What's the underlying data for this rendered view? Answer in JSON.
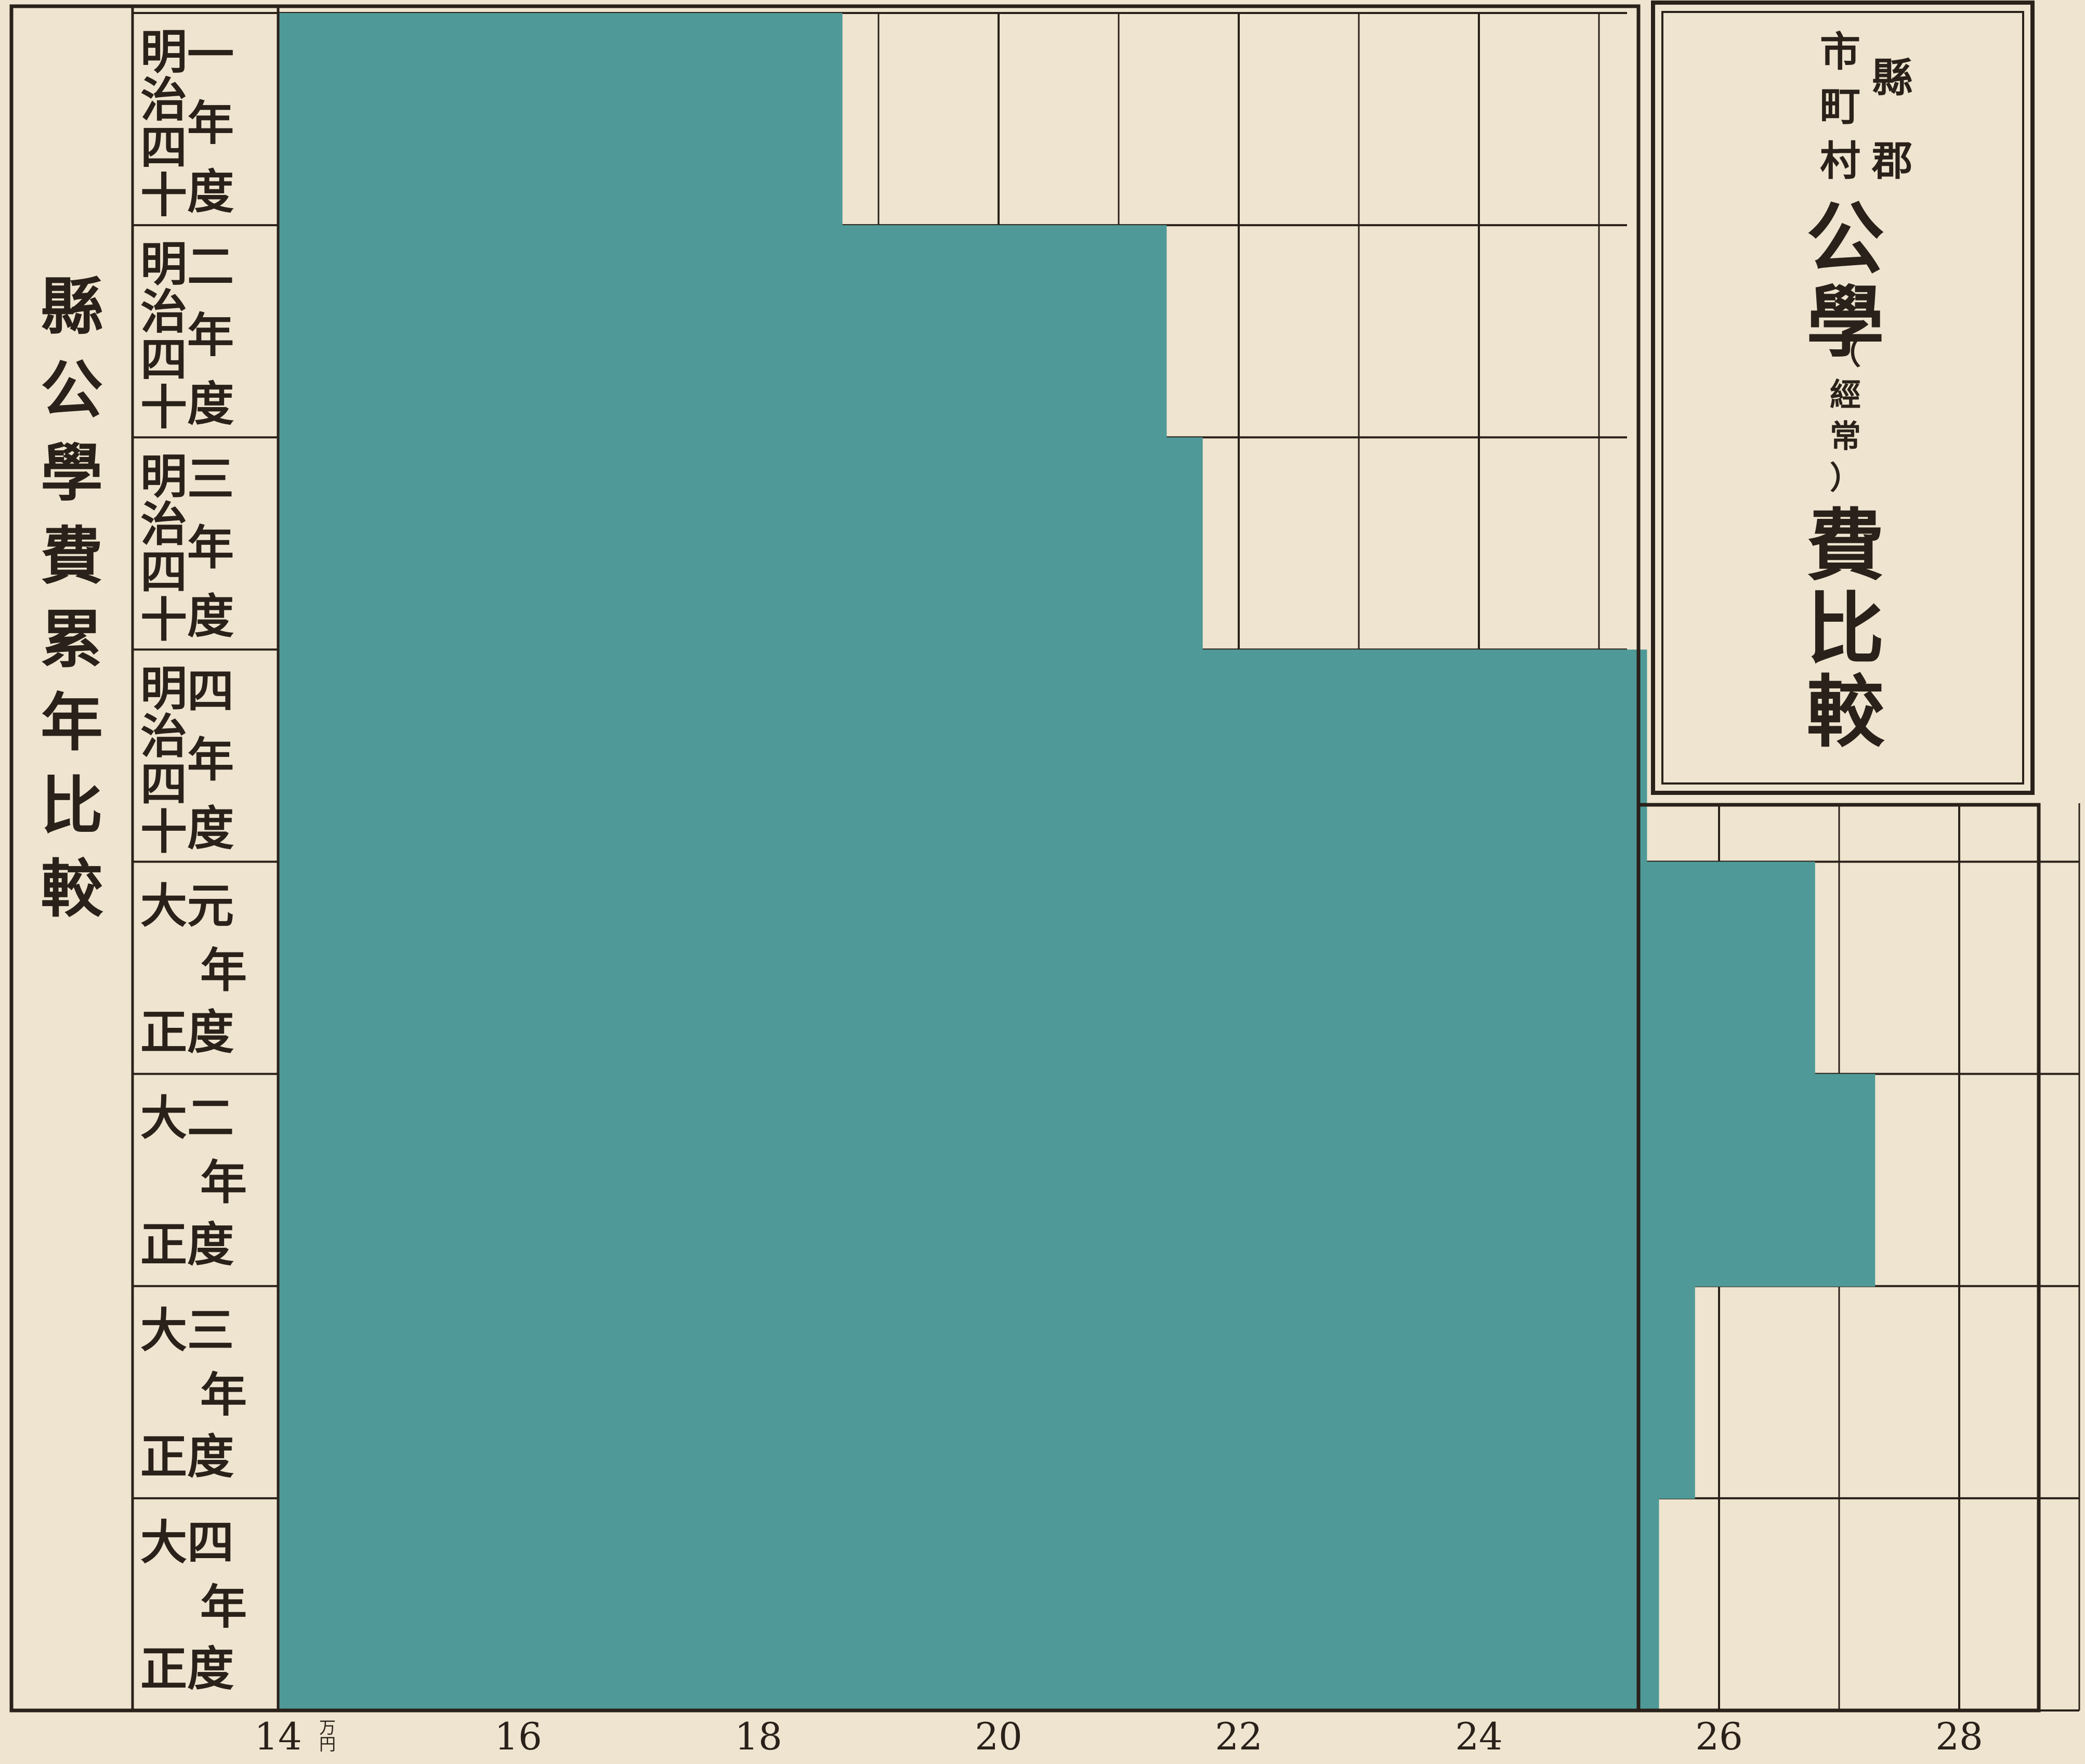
{
  "chart_data": {
    "type": "bar",
    "orientation": "horizontal",
    "title": {
      "prefix_top": "縣郡",
      "prefix_bottom": "市町村",
      "main_before": "公學",
      "paren_note": "（經常）",
      "main_after": "費比較"
    },
    "side_title": "縣公學費累年比較",
    "categories": [
      {
        "era": "明治",
        "year": "四十一",
        "suffix": "年度"
      },
      {
        "era": "明治",
        "year": "四十二",
        "suffix": "年度"
      },
      {
        "era": "明治",
        "year": "四十三",
        "suffix": "年度"
      },
      {
        "era": "明治",
        "year": "四十四",
        "suffix": "年度"
      },
      {
        "era": "大正",
        "year": "元",
        "suffix": "年度"
      },
      {
        "era": "大正",
        "year": "二",
        "suffix": "年度"
      },
      {
        "era": "大正",
        "year": "三",
        "suffix": "年度"
      },
      {
        "era": "大正",
        "year": "四",
        "suffix": "年度"
      }
    ],
    "values": [
      18.7,
      21.4,
      21.7,
      25.4,
      26.8,
      27.3,
      25.8,
      25.5
    ],
    "xlim": [
      14,
      29
    ],
    "x_ticks": [
      14,
      16,
      18,
      20,
      22,
      24,
      26,
      28
    ],
    "tick_labels": [
      "14",
      "16",
      "18",
      "20",
      "22",
      "24",
      "26",
      "28"
    ],
    "x_unit": "万円",
    "grid": true
  },
  "colors": {
    "bar": "#4f9a98",
    "paper": "#efe4cf",
    "ink": "#2a211a"
  }
}
